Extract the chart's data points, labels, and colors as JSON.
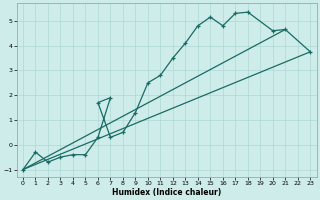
{
  "xlabel": "Humidex (Indice chaleur)",
  "xlim": [
    -0.5,
    23.5
  ],
  "ylim": [
    -1.3,
    5.7
  ],
  "xticks": [
    0,
    1,
    2,
    3,
    4,
    5,
    6,
    7,
    8,
    9,
    10,
    11,
    12,
    13,
    14,
    15,
    16,
    17,
    18,
    19,
    20,
    21,
    22,
    23
  ],
  "yticks": [
    -1,
    0,
    1,
    2,
    3,
    4,
    5
  ],
  "background_color": "#ceecea",
  "grid_color": "#aed8d4",
  "line_color": "#1a6b64",
  "zigzag_x": [
    0,
    1,
    2,
    3,
    4,
    5,
    6,
    7,
    6,
    7,
    8,
    9,
    10,
    11,
    12,
    13,
    14,
    15,
    16,
    17,
    18,
    20,
    21,
    23
  ],
  "zigzag_y": [
    -1.0,
    -0.3,
    -0.7,
    -0.5,
    -0.4,
    -0.4,
    0.3,
    1.9,
    1.7,
    0.3,
    0.5,
    1.3,
    2.5,
    2.8,
    3.5,
    4.1,
    4.8,
    5.15,
    4.8,
    5.3,
    5.35,
    4.6,
    4.65,
    3.75
  ],
  "line2_x": [
    0,
    23
  ],
  "line2_y": [
    -1.0,
    3.75
  ],
  "line3_x": [
    0,
    21
  ],
  "line3_y": [
    -1.0,
    4.65
  ]
}
